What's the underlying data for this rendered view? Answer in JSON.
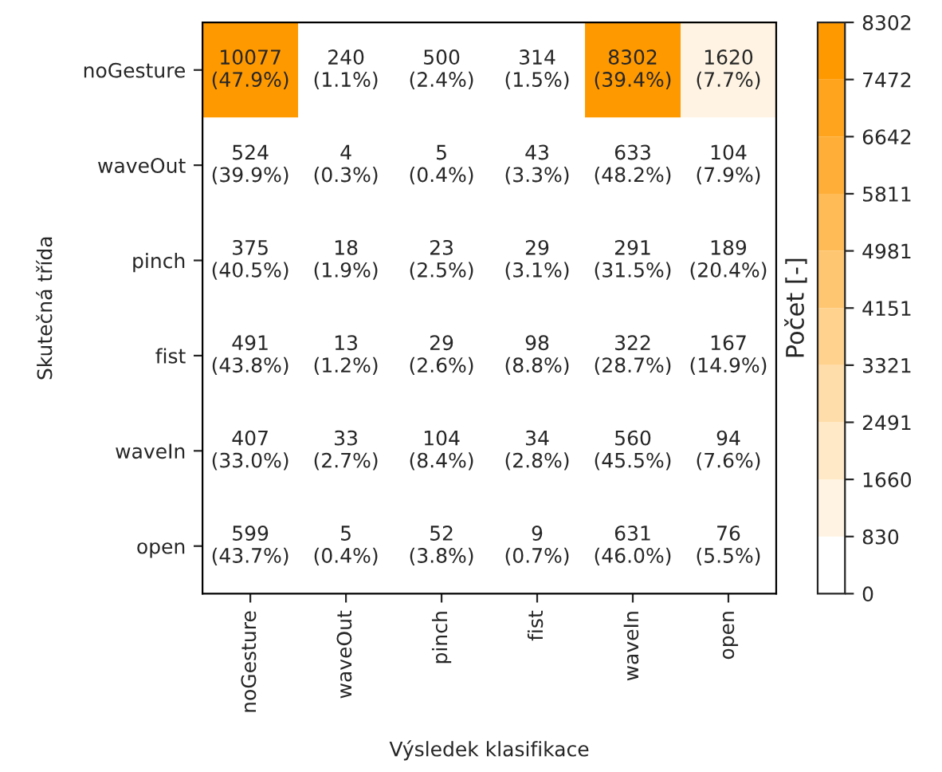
{
  "chart_data": {
    "type": "heatmap",
    "xlabel": "Výsledek klasifikace",
    "ylabel": "Skutečná třída",
    "clabel": "Počet [-]",
    "categories": [
      "noGesture",
      "waveOut",
      "pinch",
      "fist",
      "waveIn",
      "open"
    ],
    "y_categories": [
      "noGesture",
      "waveOut",
      "pinch",
      "fist",
      "waveIn",
      "open"
    ],
    "cells": [
      [
        10077,
        240,
        500,
        314,
        8302,
        1620
      ],
      [
        524,
        4,
        5,
        43,
        633,
        104
      ],
      [
        375,
        18,
        23,
        29,
        291,
        189
      ],
      [
        491,
        13,
        29,
        98,
        322,
        167
      ],
      [
        407,
        33,
        104,
        34,
        560,
        94
      ],
      [
        599,
        5,
        52,
        9,
        631,
        76
      ]
    ],
    "cell_labels": [
      [
        "10077\n(47.9%)",
        "240\n(1.1%)",
        "500\n(2.4%)",
        "314\n(1.5%)",
        "8302\n(39.4%)",
        "1620\n(7.7%)"
      ],
      [
        "524\n(39.9%)",
        "4\n(0.3%)",
        "5\n(0.4%)",
        "43\n(3.3%)",
        "633\n(48.2%)",
        "104\n(7.9%)"
      ],
      [
        "375\n(40.5%)",
        "18\n(1.9%)",
        "23\n(2.5%)",
        "29\n(3.1%)",
        "291\n(31.5%)",
        "189\n(20.4%)"
      ],
      [
        "491\n(43.8%)",
        "13\n(1.2%)",
        "29\n(2.6%)",
        "98\n(8.8%)",
        "322\n(28.7%)",
        "167\n(14.9%)"
      ],
      [
        "407\n(33.0%)",
        "33\n(2.7%)",
        "104\n(8.4%)",
        "34\n(2.8%)",
        "560\n(45.5%)",
        "94\n(7.6%)"
      ],
      [
        "599\n(43.7%)",
        "5\n(0.4%)",
        "52\n(3.8%)",
        "9\n(0.7%)",
        "631\n(46.0%)",
        "76\n(5.5%)"
      ]
    ],
    "colors": [
      "#ffffff",
      "#ff9900"
    ],
    "clim": [
      0,
      8302
    ],
    "cticks": [
      0,
      830,
      1660,
      2491,
      3321,
      4151,
      4981,
      5811,
      6642,
      7472,
      8302
    ]
  }
}
